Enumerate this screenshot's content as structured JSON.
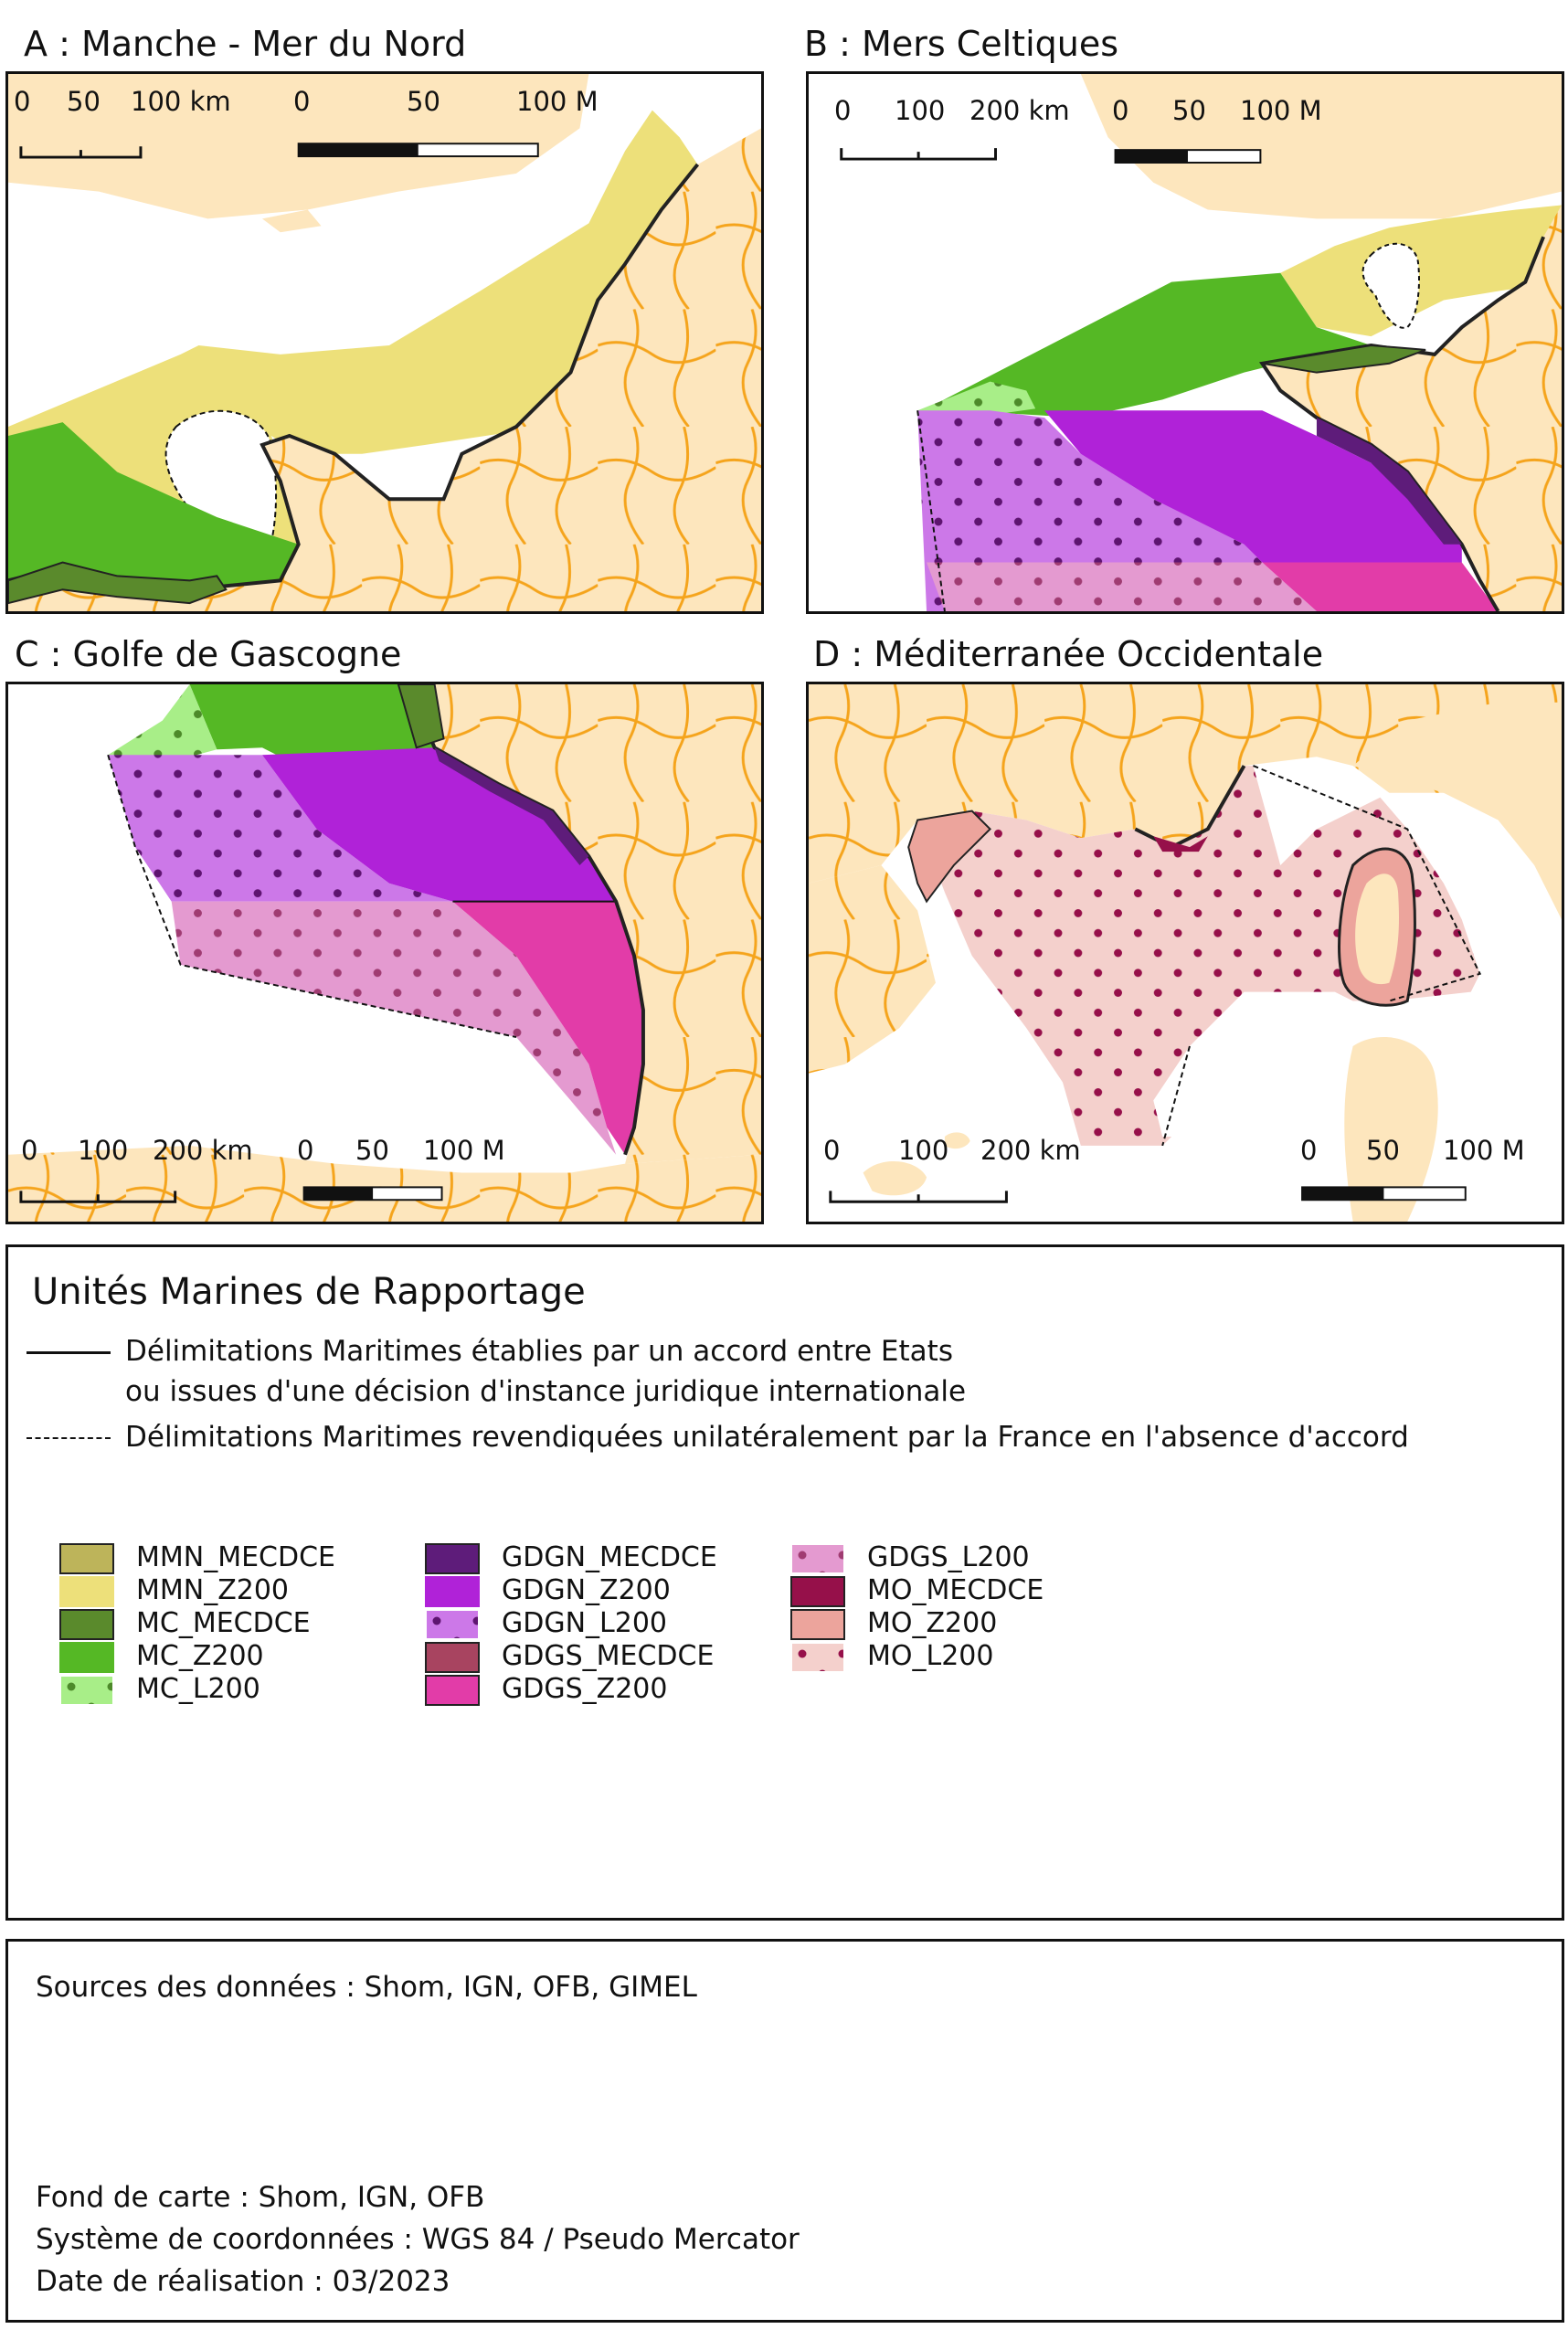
{
  "maps": [
    {
      "title": "A : Manche - Mer du Nord",
      "scale_km": {
        "labels": [
          "0",
          "50",
          "100 km"
        ]
      },
      "scale_nm": {
        "labels": [
          "0",
          "50",
          "100 M"
        ]
      }
    },
    {
      "title": "B : Mers Celtiques",
      "scale_km": {
        "labels": [
          "0",
          "100",
          "200 km"
        ]
      },
      "scale_nm": {
        "labels": [
          "0",
          "50",
          "100 M"
        ]
      }
    },
    {
      "title": "C : Golfe de Gascogne",
      "scale_km": {
        "labels": [
          "0",
          "100",
          "200 km"
        ]
      },
      "scale_nm": {
        "labels": [
          "0",
          "50",
          "100 M"
        ]
      }
    },
    {
      "title": "D : Méditerranée Occidentale",
      "scale_km": {
        "labels": [
          "0",
          "100",
          "200 km"
        ]
      },
      "scale_nm": {
        "labels": [
          "0",
          "50",
          "100 M"
        ]
      }
    }
  ],
  "legend": {
    "title": "Unités Marines de Rapportage",
    "lines": [
      {
        "style": "solid",
        "text_1": "Délimitations Maritimes établies par un accord entre Etats",
        "text_2": "ou issues d'une décision d'instance juridique internationale"
      },
      {
        "style": "dashed",
        "text_1": "Délimitations Maritimes revendiquées unilatéralement par la France en l'absence d'accord"
      }
    ],
    "columns": [
      [
        {
          "code": "MMN_MECDCE",
          "fill": "#bdb45a",
          "pattern": "none"
        },
        {
          "code": "MMN_Z200",
          "fill": "#ede07a",
          "pattern": "none"
        },
        {
          "code": "MC_MECDCE",
          "fill": "#5a8a2c",
          "pattern": "none"
        },
        {
          "code": "MC_Z200",
          "fill": "#55b825",
          "pattern": "none"
        },
        {
          "code": "MC_L200",
          "fill": "#a8ee88",
          "pattern": "dots",
          "dot": "#4d8a2a"
        }
      ],
      [
        {
          "code": "GDGN_MECDCE",
          "fill": "#5e1c7a",
          "pattern": "none"
        },
        {
          "code": "GDGN_Z200",
          "fill": "#b022d8",
          "pattern": "none"
        },
        {
          "code": "GDGN_L200",
          "fill": "#cc78e8",
          "pattern": "dots",
          "dot": "#5e1470"
        },
        {
          "code": "GDGS_MECDCE",
          "fill": "#a84460",
          "pattern": "none"
        },
        {
          "code": "GDGS_Z200",
          "fill": "#e23ca8",
          "pattern": "none"
        }
      ],
      [
        {
          "code": "GDGS_L200",
          "fill": "#e49ad0",
          "pattern": "dots",
          "dot": "#a03c72"
        },
        {
          "code": "MO_MECDCE",
          "fill": "#96104a",
          "pattern": "none"
        },
        {
          "code": "MO_Z200",
          "fill": "#eca49c",
          "pattern": "none"
        },
        {
          "code": "MO_L200",
          "fill": "#f4d0cc",
          "pattern": "dots",
          "dot": "#96104a"
        }
      ]
    ]
  },
  "sources": {
    "data": "Sources des données : Shom, IGN, OFB, GIMEL",
    "basemap": "Fond de carte : Shom, IGN, OFB",
    "crs": "Système de coordonnées : WGS 84 / Pseudo Mercator",
    "date": "Date de réalisation : 03/2023"
  },
  "colors": {
    "land": "#fde6bd",
    "boundary": "#f5a41c",
    "sea": "#ffffff",
    "frame": "#111111"
  }
}
